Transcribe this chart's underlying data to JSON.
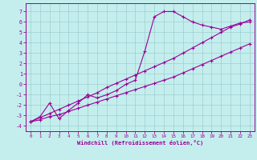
{
  "xlabel": "Windchill (Refroidissement éolien,°C)",
  "xlim": [
    -0.5,
    23.5
  ],
  "ylim": [
    -4.5,
    7.8
  ],
  "yticks": [
    -4,
    -3,
    -2,
    -1,
    0,
    1,
    2,
    3,
    4,
    5,
    6,
    7
  ],
  "xticks": [
    0,
    1,
    2,
    3,
    4,
    5,
    6,
    7,
    8,
    9,
    10,
    11,
    12,
    13,
    14,
    15,
    16,
    17,
    18,
    19,
    20,
    21,
    22,
    23
  ],
  "background_color": "#c4eeed",
  "grid_color": "#9ecece",
  "line_color": "#990099",
  "line1_x": [
    0,
    1,
    2,
    3,
    4,
    5,
    6,
    7,
    8,
    9,
    10,
    11,
    12,
    13,
    14,
    15,
    16,
    17,
    18,
    19,
    20,
    21,
    22,
    23
  ],
  "line1_y": [
    -3.6,
    -3.4,
    -3.1,
    -2.9,
    -2.6,
    -2.3,
    -2.0,
    -1.7,
    -1.4,
    -1.1,
    -0.8,
    -0.5,
    -0.2,
    0.1,
    0.4,
    0.7,
    1.1,
    1.5,
    1.9,
    2.3,
    2.7,
    3.1,
    3.5,
    3.9
  ],
  "line2_x": [
    0,
    1,
    2,
    3,
    4,
    5,
    6,
    7,
    8,
    9,
    10,
    11,
    12,
    13,
    14,
    15,
    16,
    17,
    18,
    19,
    20,
    21,
    22,
    23
  ],
  "line2_y": [
    -3.6,
    -3.2,
    -2.8,
    -2.4,
    -2.0,
    -1.6,
    -1.2,
    -0.8,
    -0.3,
    0.1,
    0.5,
    0.9,
    1.3,
    1.7,
    2.1,
    2.5,
    3.0,
    3.5,
    4.0,
    4.5,
    5.0,
    5.5,
    5.8,
    6.2
  ],
  "line3_x": [
    0,
    1,
    2,
    3,
    4,
    5,
    6,
    7,
    8,
    9,
    10,
    11,
    12,
    13,
    14,
    15,
    16,
    17,
    18,
    19,
    20,
    21,
    22,
    23
  ],
  "line3_y": [
    -3.6,
    -3.1,
    -1.8,
    -3.3,
    -2.5,
    -1.8,
    -1.0,
    -1.3,
    -1.0,
    -0.6,
    0.0,
    0.4,
    3.2,
    6.5,
    7.0,
    7.0,
    6.5,
    6.0,
    5.7,
    5.5,
    5.3,
    5.6,
    5.9,
    6.0
  ]
}
